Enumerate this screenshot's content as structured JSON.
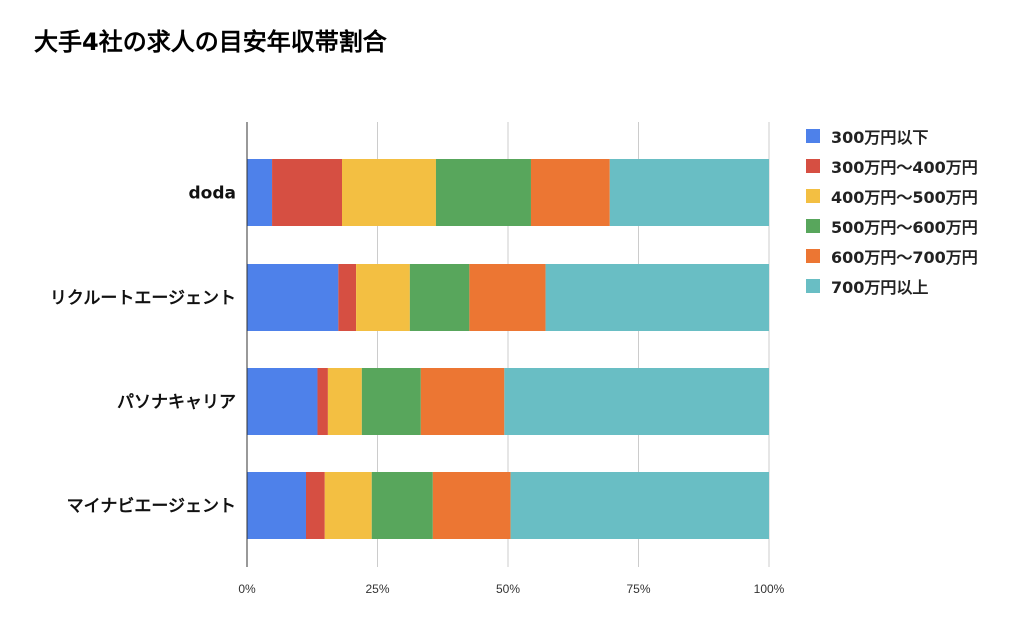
{
  "chart_data": {
    "type": "bar",
    "orientation": "horizontal",
    "stacked": "percent",
    "title": "大手4社の求人の目安年収帯割合",
    "categories": [
      "doda",
      "リクルートエージェント",
      "パソナキャリア",
      "マイナビエージェント"
    ],
    "series": [
      {
        "name": "300万円以下",
        "color": "#4e81ea",
        "values": [
          4.8,
          17.5,
          13.5,
          11.3
        ]
      },
      {
        "name": "300万円〜400万円",
        "color": "#d64f42",
        "values": [
          13.4,
          3.4,
          2.0,
          3.6
        ]
      },
      {
        "name": "400万円〜500万円",
        "color": "#f3bf42",
        "values": [
          18.0,
          10.3,
          6.5,
          9.0
        ]
      },
      {
        "name": "500万円〜600万円",
        "color": "#58a65c",
        "values": [
          18.2,
          11.4,
          11.3,
          11.7
        ]
      },
      {
        "name": "600万円〜700万円",
        "color": "#ec7633",
        "values": [
          15.1,
          14.6,
          16.0,
          14.9
        ]
      },
      {
        "name": "700万円以上",
        "color": "#69bec4",
        "values": [
          30.5,
          42.8,
          50.7,
          49.5
        ]
      }
    ],
    "xlim": [
      0,
      100
    ],
    "xticks": [
      "0%",
      "25%",
      "50%",
      "75%",
      "100%"
    ],
    "grid": true,
    "legend_position": "right"
  }
}
